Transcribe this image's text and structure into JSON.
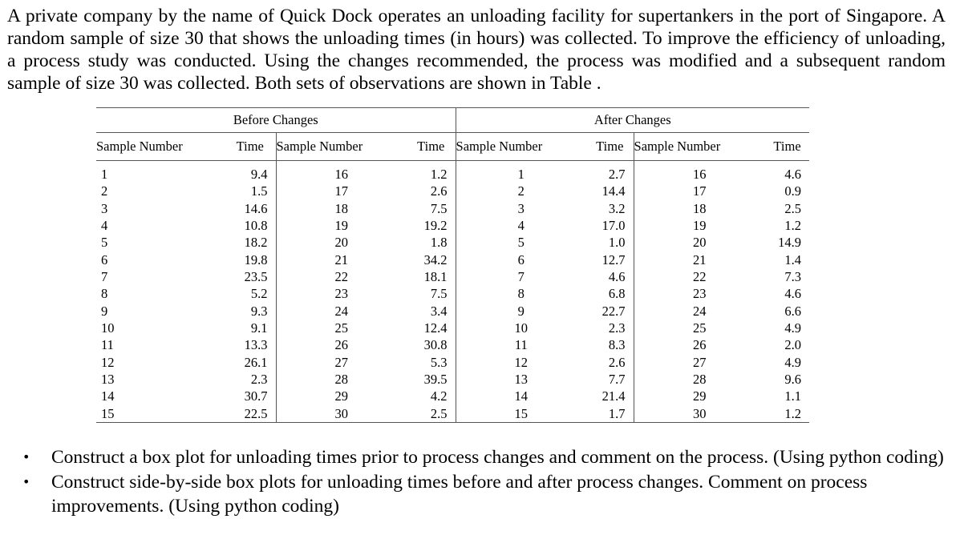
{
  "intro": "A private company by the name of Quick Dock operates an unloading facility for supertankers in the port of Singapore. A random sample of size 30 that shows the unloading times (in hours) was collected. To improve the efficiency of unloading, a process study was conducted. Using the changes recommended, the process was modified and a subsequent random sample of size 30 was collected. Both sets of observations are shown in Table .",
  "table": {
    "group_before": "Before Changes",
    "group_after": "After Changes",
    "col_sample": "Sample Number",
    "col_time": "Time",
    "rows": [
      [
        "1",
        "9.4",
        "16",
        "1.2",
        "1",
        "2.7",
        "16",
        "4.6"
      ],
      [
        "2",
        "1.5",
        "17",
        "2.6",
        "2",
        "14.4",
        "17",
        "0.9"
      ],
      [
        "3",
        "14.6",
        "18",
        "7.5",
        "3",
        "3.2",
        "18",
        "2.5"
      ],
      [
        "4",
        "10.8",
        "19",
        "19.2",
        "4",
        "17.0",
        "19",
        "1.2"
      ],
      [
        "5",
        "18.2",
        "20",
        "1.8",
        "5",
        "1.0",
        "20",
        "14.9"
      ],
      [
        "6",
        "19.8",
        "21",
        "34.2",
        "6",
        "12.7",
        "21",
        "1.4"
      ],
      [
        "7",
        "23.5",
        "22",
        "18.1",
        "7",
        "4.6",
        "22",
        "7.3"
      ],
      [
        "8",
        "5.2",
        "23",
        "7.5",
        "8",
        "6.8",
        "23",
        "4.6"
      ],
      [
        "9",
        "9.3",
        "24",
        "3.4",
        "9",
        "22.7",
        "24",
        "6.6"
      ],
      [
        "10",
        "9.1",
        "25",
        "12.4",
        "10",
        "2.3",
        "25",
        "4.9"
      ],
      [
        "11",
        "13.3",
        "26",
        "30.8",
        "11",
        "8.3",
        "26",
        "2.0"
      ],
      [
        "12",
        "26.1",
        "27",
        "5.3",
        "12",
        "2.6",
        "27",
        "4.9"
      ],
      [
        "13",
        "2.3",
        "28",
        "39.5",
        "13",
        "7.7",
        "28",
        "9.6"
      ],
      [
        "14",
        "30.7",
        "29",
        "4.2",
        "14",
        "21.4",
        "29",
        "1.1"
      ],
      [
        "15",
        "22.5",
        "30",
        "2.5",
        "15",
        "1.7",
        "30",
        "1.2"
      ]
    ]
  },
  "tasks": [
    "Construct a box plot for unloading times prior to process changes and comment on the process. (Using python coding)",
    "Construct side-by-side box plots for unloading times before and after process changes. Comment on process improvements. (Using python coding)"
  ],
  "bullet_symbol": "•"
}
